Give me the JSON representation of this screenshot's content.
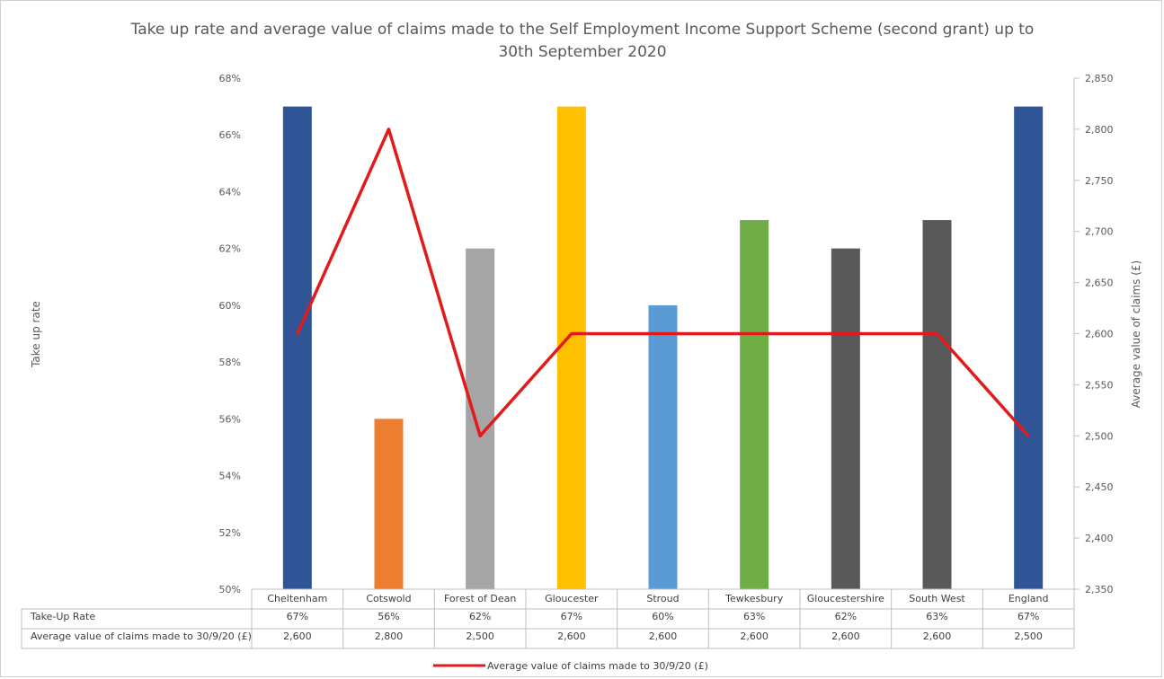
{
  "chart_data": {
    "type": "bar",
    "title_line1": "Take up rate and average value of claims made to the Self Employment Income Support Scheme (second grant) up to",
    "title_line2": "30th September 2020",
    "categories": [
      "Cheltenham",
      "Cotswold",
      "Forest of Dean",
      "Gloucester",
      "Stroud",
      "Tewkesbury",
      "Gloucestershire",
      "South West",
      "England"
    ],
    "bar_series": {
      "name": "Take-Up Rate",
      "values": [
        67,
        56,
        62,
        67,
        60,
        63,
        62,
        63,
        67
      ],
      "labels": [
        "67%",
        "56%",
        "62%",
        "67%",
        "60%",
        "63%",
        "62%",
        "63%",
        "67%"
      ],
      "colors": [
        "#2F5597",
        "#ED7D31",
        "#A5A5A5",
        "#FFC000",
        "#5B9BD5",
        "#70AD47",
        "#595959",
        "#595959",
        "#2F5597"
      ]
    },
    "line_series": {
      "name": "Average value of claims made to 30/9/20 (£)",
      "values": [
        2600,
        2800,
        2500,
        2600,
        2600,
        2600,
        2600,
        2600,
        2500
      ],
      "labels": [
        "2,600",
        "2,800",
        "2,500",
        "2,600",
        "2,600",
        "2,600",
        "2,600",
        "2,600",
        "2,500"
      ],
      "color": "#E31A1C"
    },
    "y_left": {
      "label": "Take up rate",
      "min": 50,
      "max": 68,
      "ticks": [
        50,
        52,
        54,
        56,
        58,
        60,
        62,
        64,
        66,
        68
      ],
      "tick_labels": [
        "50%",
        "52%",
        "54%",
        "56%",
        "58%",
        "60%",
        "62%",
        "64%",
        "66%",
        "68%"
      ]
    },
    "y_right": {
      "label": "Average value of claims (£)",
      "min": 2350,
      "max": 2850,
      "ticks": [
        2350,
        2400,
        2450,
        2500,
        2550,
        2600,
        2650,
        2700,
        2750,
        2800,
        2850
      ],
      "tick_labels": [
        "2,350",
        "2,400",
        "2,450",
        "2,500",
        "2,550",
        "2,600",
        "2,650",
        "2,700",
        "2,750",
        "2,800",
        "2,850"
      ]
    },
    "grid": false,
    "legend_position": "bottom",
    "data_table": true
  }
}
